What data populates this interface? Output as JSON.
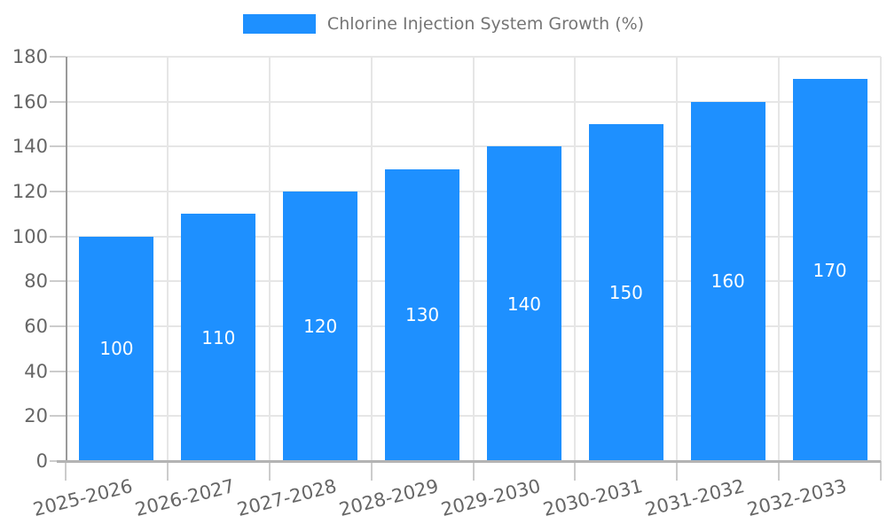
{
  "legend": {
    "label": "Chlorine Injection System Growth (%)"
  },
  "chart_data": {
    "type": "bar",
    "title": "Chlorine Injection System Growth (%)",
    "categories": [
      "2025-2026",
      "2026-2027",
      "2027-2028",
      "2028-2029",
      "2029-2030",
      "2030-2031",
      "2031-2032",
      "2032-2033"
    ],
    "values": [
      100,
      110,
      120,
      130,
      140,
      150,
      160,
      170
    ],
    "bar_labels": [
      "100",
      "110",
      "120",
      "130",
      "140",
      "150",
      "160",
      "170"
    ],
    "xlabel": "",
    "ylabel": "",
    "ylim": [
      0,
      180
    ],
    "ytick_step": 20,
    "yticks": [
      "0",
      "20",
      "40",
      "60",
      "80",
      "100",
      "120",
      "140",
      "160",
      "180"
    ],
    "grid": "both",
    "legend_position": "top-center",
    "colors": {
      "bar": "#1E90FF",
      "value_label": "#ffffff",
      "axis_text": "#666666",
      "legend_text": "#757575",
      "gridline": "#e6e6e6",
      "y_axis_line": "#9a9a9a",
      "x_axis_line": "#b3b3b3",
      "tick": "#cccccc"
    }
  }
}
